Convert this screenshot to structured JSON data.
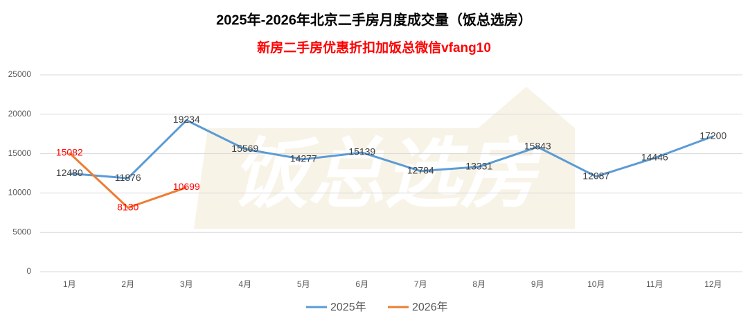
{
  "chart_data": {
    "type": "line",
    "title": "2025年-2026年北京二手房月度成交量（饭总选房）",
    "subtitle": "新房二手房优惠折扣加饭总微信vfang10",
    "watermark": "饭总选房",
    "categories": [
      "1月",
      "2月",
      "3月",
      "4月",
      "5月",
      "6月",
      "7月",
      "8月",
      "9月",
      "10月",
      "11月",
      "12月"
    ],
    "series": [
      {
        "name": "2025年",
        "color": "#5b9bd5",
        "label_color": "#404040",
        "values": [
          12480,
          11876,
          19234,
          15569,
          14277,
          15139,
          12784,
          13331,
          15843,
          12087,
          14446,
          17200
        ]
      },
      {
        "name": "2026年",
        "color": "#ed7d31",
        "label_color": "#ff0000",
        "values": [
          15082,
          8130,
          10699,
          null,
          null,
          null,
          null,
          null,
          null,
          null,
          null,
          null
        ]
      }
    ],
    "ylim": [
      0,
      25000
    ],
    "yticks": [
      0,
      5000,
      10000,
      15000,
      20000,
      25000
    ],
    "grid": true,
    "legend": "bottom"
  }
}
